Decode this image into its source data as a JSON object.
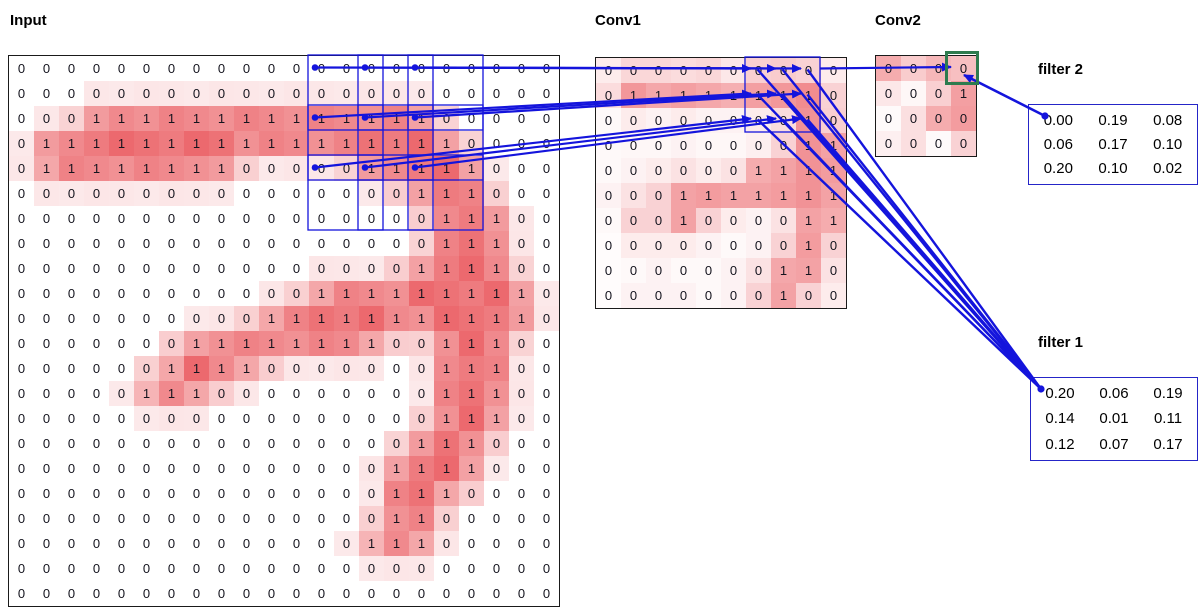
{
  "colors": {
    "heat_max": "#eb5f64",
    "line_blue": "#1414dc",
    "box_blue": "#2020cc",
    "highlight_green": "#2e7b4e",
    "grid_border": "#1a1a1a"
  },
  "panels": {
    "input": {
      "label": "Input",
      "rows": 22,
      "cols": 22,
      "grid": [
        [
          0,
          0,
          0,
          0,
          0,
          0,
          0,
          0,
          0,
          0,
          0,
          0,
          0,
          0,
          0,
          0,
          0,
          0,
          0,
          0,
          0,
          0
        ],
        [
          0,
          0,
          0,
          0,
          0,
          0,
          0,
          0,
          0,
          0,
          0,
          0,
          0,
          0,
          0,
          0,
          0,
          0,
          0,
          0,
          0,
          0
        ],
        [
          0,
          0,
          0,
          1,
          1,
          1,
          1,
          1,
          1,
          1,
          1,
          1,
          1,
          1,
          1,
          1,
          1,
          0,
          0,
          0,
          0,
          0
        ],
        [
          0,
          1,
          1,
          1,
          1,
          1,
          1,
          1,
          1,
          1,
          1,
          1,
          1,
          1,
          1,
          1,
          1,
          1,
          0,
          0,
          0,
          0
        ],
        [
          0,
          1,
          1,
          1,
          1,
          1,
          1,
          1,
          1,
          0,
          0,
          0,
          0,
          0,
          1,
          1,
          1,
          1,
          1,
          0,
          0,
          0
        ],
        [
          0,
          0,
          0,
          0,
          0,
          0,
          0,
          0,
          0,
          0,
          0,
          0,
          0,
          0,
          0,
          0,
          1,
          1,
          1,
          0,
          0,
          0
        ],
        [
          0,
          0,
          0,
          0,
          0,
          0,
          0,
          0,
          0,
          0,
          0,
          0,
          0,
          0,
          0,
          0,
          0,
          1,
          1,
          1,
          0,
          0
        ],
        [
          0,
          0,
          0,
          0,
          0,
          0,
          0,
          0,
          0,
          0,
          0,
          0,
          0,
          0,
          0,
          0,
          0,
          1,
          1,
          1,
          0,
          0
        ],
        [
          0,
          0,
          0,
          0,
          0,
          0,
          0,
          0,
          0,
          0,
          0,
          0,
          0,
          0,
          0,
          0,
          1,
          1,
          1,
          1,
          0,
          0
        ],
        [
          0,
          0,
          0,
          0,
          0,
          0,
          0,
          0,
          0,
          0,
          0,
          0,
          1,
          1,
          1,
          1,
          1,
          1,
          1,
          1,
          1,
          0
        ],
        [
          0,
          0,
          0,
          0,
          0,
          0,
          0,
          0,
          0,
          0,
          1,
          1,
          1,
          1,
          1,
          1,
          1,
          1,
          1,
          1,
          1,
          0
        ],
        [
          0,
          0,
          0,
          0,
          0,
          0,
          0,
          1,
          1,
          1,
          1,
          1,
          1,
          1,
          1,
          0,
          0,
          1,
          1,
          1,
          0,
          0
        ],
        [
          0,
          0,
          0,
          0,
          0,
          0,
          1,
          1,
          1,
          1,
          0,
          0,
          0,
          0,
          0,
          0,
          0,
          1,
          1,
          1,
          0,
          0
        ],
        [
          0,
          0,
          0,
          0,
          0,
          1,
          1,
          1,
          0,
          0,
          0,
          0,
          0,
          0,
          0,
          0,
          0,
          1,
          1,
          1,
          0,
          0
        ],
        [
          0,
          0,
          0,
          0,
          0,
          0,
          0,
          0,
          0,
          0,
          0,
          0,
          0,
          0,
          0,
          0,
          0,
          1,
          1,
          1,
          0,
          0
        ],
        [
          0,
          0,
          0,
          0,
          0,
          0,
          0,
          0,
          0,
          0,
          0,
          0,
          0,
          0,
          0,
          0,
          1,
          1,
          1,
          0,
          0,
          0
        ],
        [
          0,
          0,
          0,
          0,
          0,
          0,
          0,
          0,
          0,
          0,
          0,
          0,
          0,
          0,
          0,
          1,
          1,
          1,
          1,
          0,
          0,
          0
        ],
        [
          0,
          0,
          0,
          0,
          0,
          0,
          0,
          0,
          0,
          0,
          0,
          0,
          0,
          0,
          0,
          1,
          1,
          1,
          0,
          0,
          0,
          0
        ],
        [
          0,
          0,
          0,
          0,
          0,
          0,
          0,
          0,
          0,
          0,
          0,
          0,
          0,
          0,
          0,
          1,
          1,
          0,
          0,
          0,
          0,
          0
        ],
        [
          0,
          0,
          0,
          0,
          0,
          0,
          0,
          0,
          0,
          0,
          0,
          0,
          0,
          0,
          1,
          1,
          1,
          0,
          0,
          0,
          0,
          0
        ],
        [
          0,
          0,
          0,
          0,
          0,
          0,
          0,
          0,
          0,
          0,
          0,
          0,
          0,
          0,
          0,
          0,
          0,
          0,
          0,
          0,
          0,
          0
        ],
        [
          0,
          0,
          0,
          0,
          0,
          0,
          0,
          0,
          0,
          0,
          0,
          0,
          0,
          0,
          0,
          0,
          0,
          0,
          0,
          0,
          0,
          0
        ]
      ]
    },
    "conv1": {
      "label": "Conv1",
      "rows": 10,
      "cols": 10,
      "grid": [
        [
          0,
          0,
          0,
          0,
          0,
          0,
          0,
          0,
          0,
          0
        ],
        [
          0,
          1,
          1,
          1,
          1,
          1,
          1,
          1,
          1,
          0
        ],
        [
          0,
          0,
          0,
          0,
          0,
          0,
          0,
          0,
          1,
          0
        ],
        [
          0,
          0,
          0,
          0,
          0,
          0,
          0,
          0,
          1,
          1
        ],
        [
          0,
          0,
          0,
          0,
          0,
          0,
          1,
          1,
          1,
          1
        ],
        [
          0,
          0,
          0,
          1,
          1,
          1,
          1,
          1,
          1,
          1
        ],
        [
          0,
          0,
          0,
          1,
          0,
          0,
          0,
          0,
          1,
          1
        ],
        [
          0,
          0,
          0,
          0,
          0,
          0,
          0,
          0,
          1,
          0
        ],
        [
          0,
          0,
          0,
          0,
          0,
          0,
          0,
          1,
          1,
          0
        ],
        [
          0,
          0,
          0,
          0,
          0,
          0,
          0,
          1,
          0,
          0
        ]
      ],
      "shades": [
        [
          0.12,
          0.25,
          0.25,
          0.22,
          0.25,
          0.15,
          0.3,
          0.32,
          0.28,
          0.12
        ],
        [
          0.22,
          0.65,
          0.55,
          0.6,
          0.55,
          0.5,
          0.6,
          0.65,
          0.72,
          0.28
        ],
        [
          0.04,
          0.12,
          0.08,
          0.12,
          0.08,
          0.08,
          0.12,
          0.22,
          0.68,
          0.3
        ],
        [
          0.04,
          0.05,
          0.05,
          0.08,
          0.05,
          0.05,
          0.1,
          0.28,
          0.68,
          0.58
        ],
        [
          0.04,
          0.08,
          0.12,
          0.18,
          0.12,
          0.18,
          0.52,
          0.58,
          0.68,
          0.62
        ],
        [
          0.08,
          0.18,
          0.28,
          0.58,
          0.62,
          0.58,
          0.58,
          0.62,
          0.68,
          0.58
        ],
        [
          0.04,
          0.28,
          0.28,
          0.58,
          0.28,
          0.12,
          0.08,
          0.18,
          0.58,
          0.52
        ],
        [
          0.02,
          0.12,
          0.12,
          0.12,
          0.08,
          0.04,
          0.08,
          0.28,
          0.62,
          0.28
        ],
        [
          0.02,
          0.04,
          0.08,
          0.04,
          0.04,
          0.08,
          0.18,
          0.55,
          0.58,
          0.18
        ],
        [
          0.02,
          0.08,
          0.08,
          0.08,
          0.04,
          0.08,
          0.28,
          0.58,
          0.28,
          0.12
        ]
      ]
    },
    "conv2": {
      "label": "Conv2",
      "rows": 4,
      "cols": 4,
      "grid": [
        [
          0,
          0,
          0,
          0
        ],
        [
          0,
          0,
          0,
          1
        ],
        [
          0,
          0,
          0,
          0
        ],
        [
          0,
          0,
          0,
          0
        ]
      ],
      "shades": [
        [
          0.52,
          0.32,
          0.45,
          0.4
        ],
        [
          0.15,
          0.05,
          0.3,
          0.6
        ],
        [
          0.03,
          0.2,
          0.52,
          0.62
        ],
        [
          0.1,
          0.2,
          0.03,
          0.28
        ]
      ]
    }
  },
  "filters": {
    "filter1": {
      "label": "filter 1",
      "values": [
        [
          "0.20",
          "0.06",
          "0.19"
        ],
        [
          "0.14",
          "0.01",
          "0.11"
        ],
        [
          "0.12",
          "0.07",
          "0.17"
        ]
      ]
    },
    "filter2": {
      "label": "filter 2",
      "values": [
        [
          "0.00",
          "0.19",
          "0.08"
        ],
        [
          "0.06",
          "0.17",
          "0.10"
        ],
        [
          "0.20",
          "0.10",
          "0.02"
        ]
      ]
    }
  },
  "receptive_fields": {
    "input_patch_rows": [
      0,
      2,
      4
    ],
    "input_patch_cols": [
      12,
      14,
      16
    ],
    "patch_size": 3,
    "conv1_target_box": {
      "row": 0,
      "col": 6,
      "size": 3
    },
    "conv2_highlight_cell": {
      "row": 0,
      "col": 3
    }
  }
}
